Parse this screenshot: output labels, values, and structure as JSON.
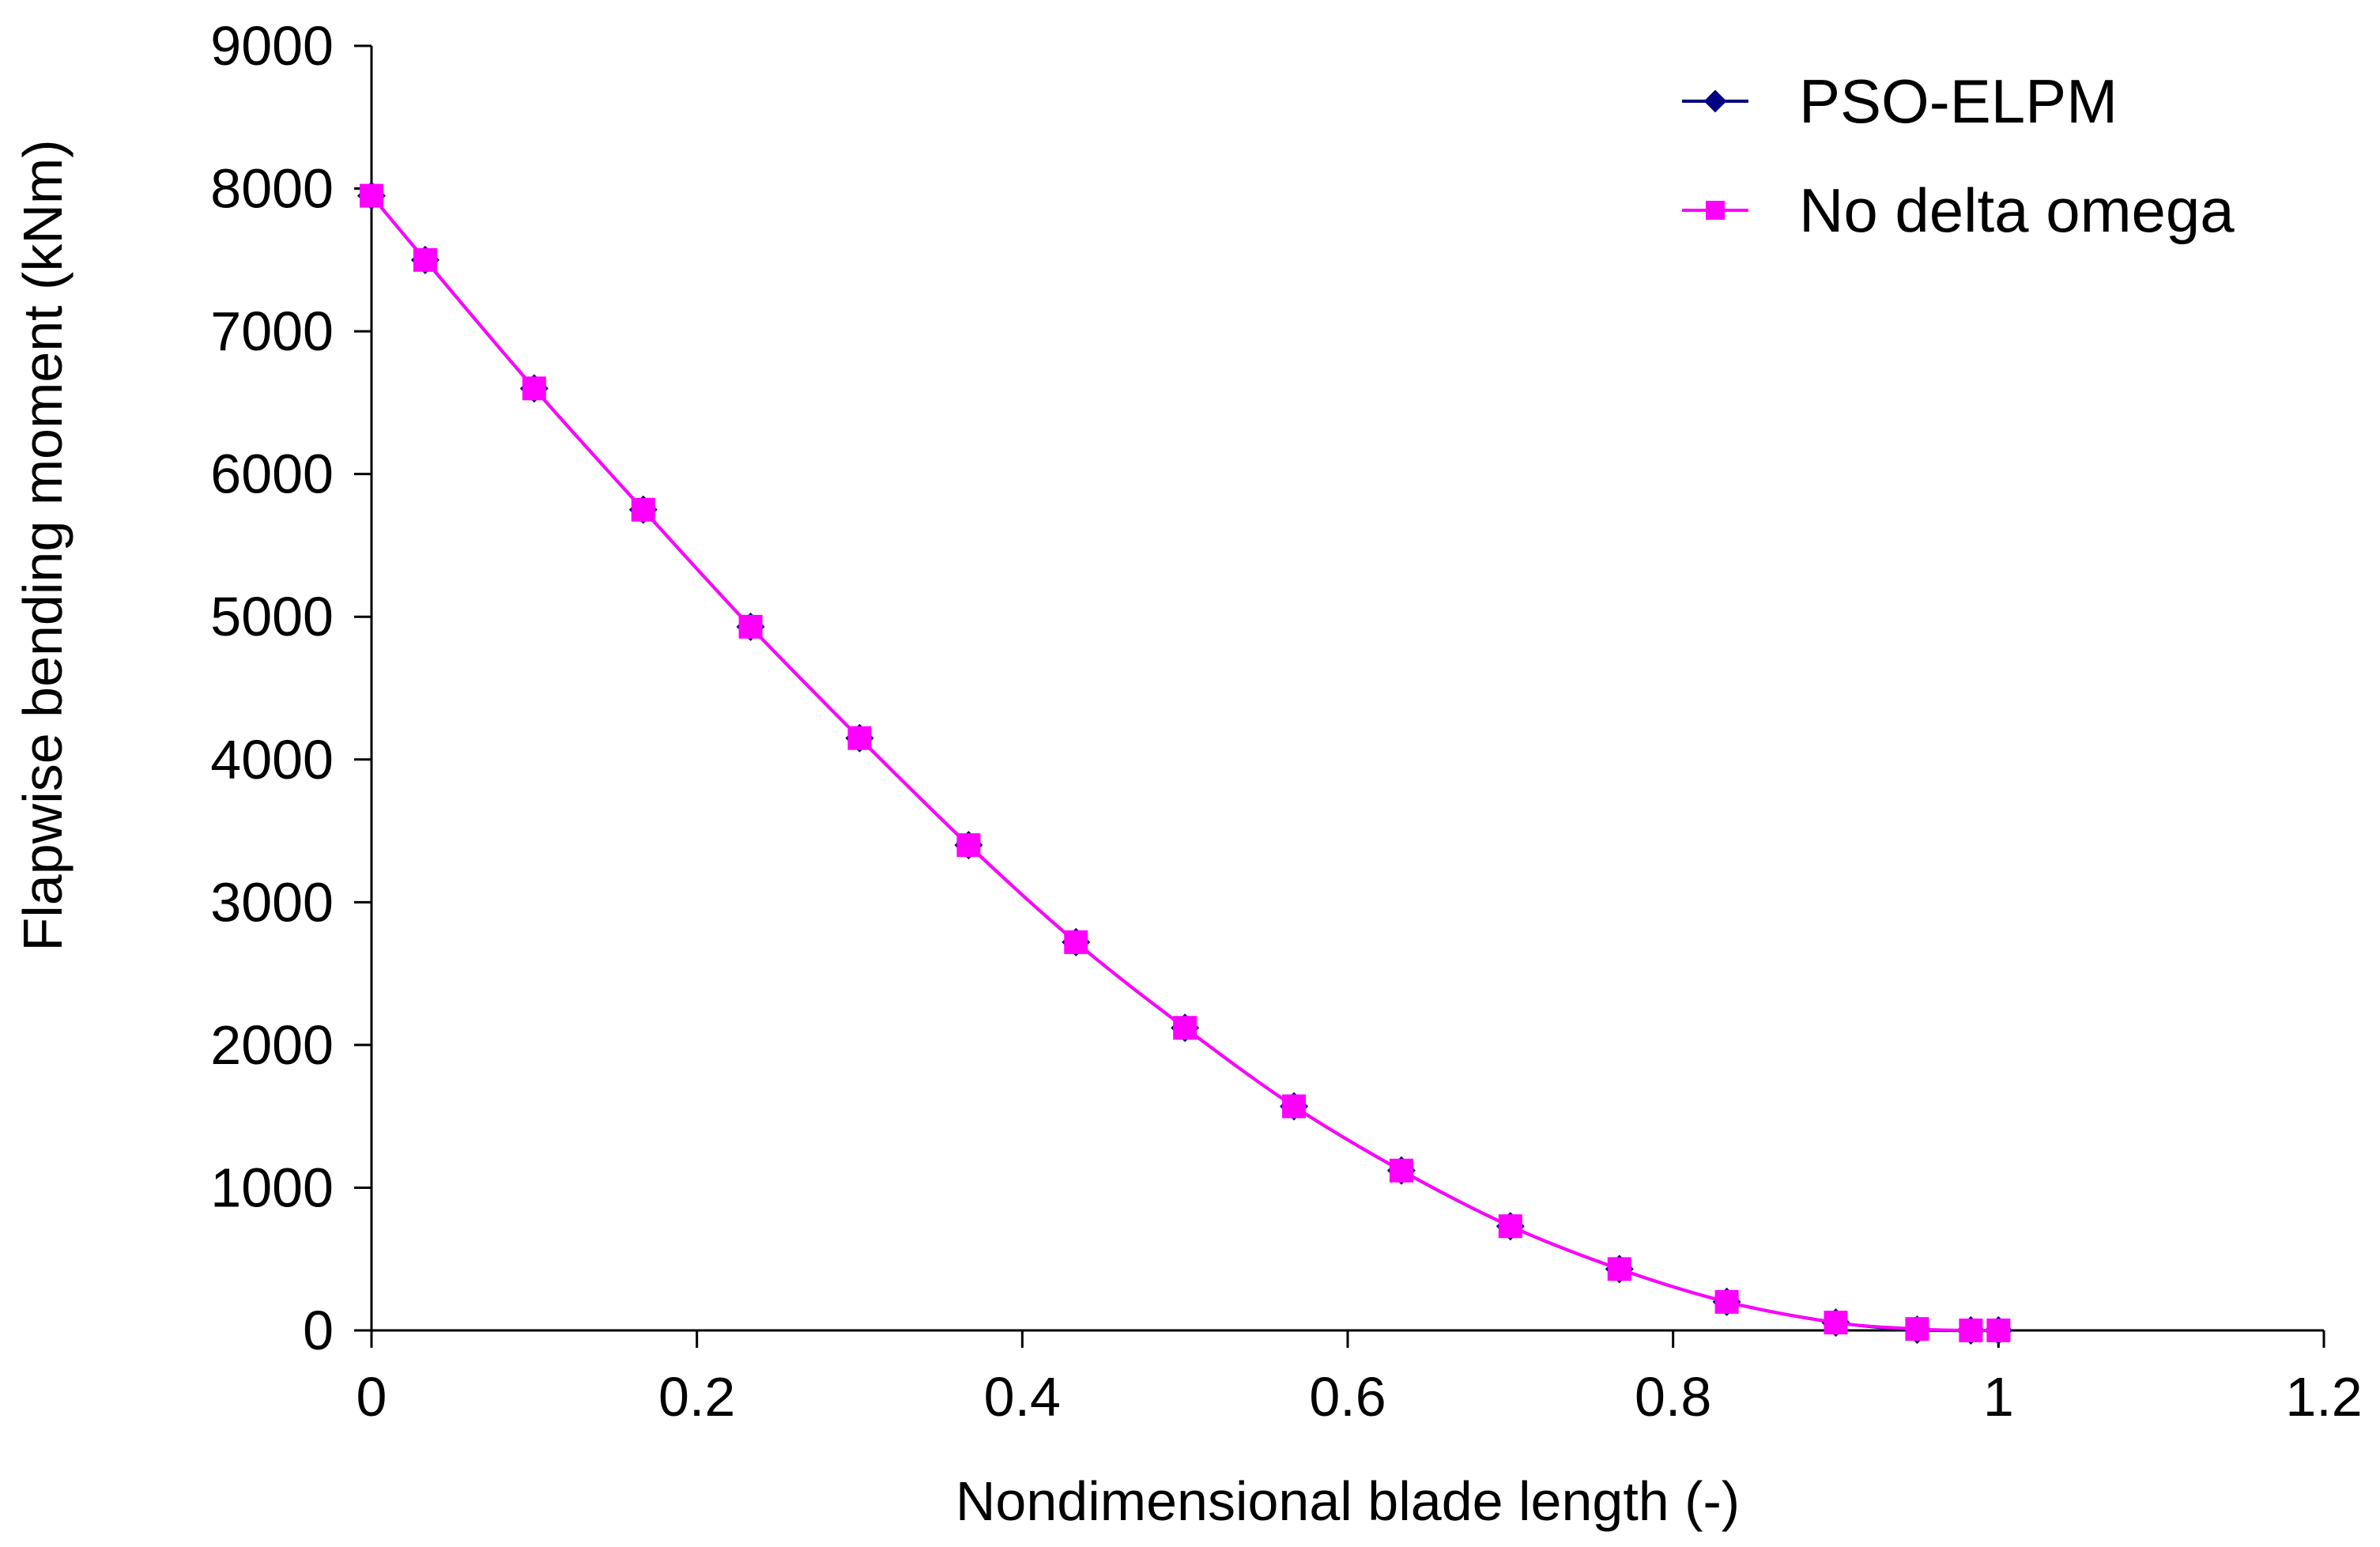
{
  "chart_data": {
    "type": "line",
    "title": "",
    "xlabel": "Nondimensional blade length (-)",
    "ylabel": "Flapwise bending moment (kNm)",
    "xlim": [
      0,
      1.2
    ],
    "ylim": [
      0,
      9000
    ],
    "xticks": [
      "0",
      "0.2",
      "0.4",
      "0.6",
      "0.8",
      "1",
      "1.2"
    ],
    "yticks": [
      "0",
      "1000",
      "2000",
      "3000",
      "4000",
      "5000",
      "6000",
      "7000",
      "8000",
      "9000"
    ],
    "grid": false,
    "legend_position": "top-right",
    "x": [
      0,
      0.033,
      0.1,
      0.167,
      0.233,
      0.3,
      0.367,
      0.433,
      0.5,
      0.567,
      0.633,
      0.7,
      0.767,
      0.833,
      0.9,
      0.95,
      0.983,
      1.0
    ],
    "series": [
      {
        "name": "PSO-ELPM",
        "color": "#000080",
        "marker": "diamond",
        "values": [
          7950,
          7500,
          6600,
          5750,
          4930,
          4150,
          3400,
          2720,
          2120,
          1570,
          1120,
          730,
          430,
          200,
          55,
          5,
          0,
          0
        ]
      },
      {
        "name": "No delta omega",
        "color": "#ff00ff",
        "marker": "square",
        "values": [
          7950,
          7500,
          6600,
          5750,
          4930,
          4150,
          3400,
          2720,
          2120,
          1570,
          1120,
          730,
          430,
          200,
          55,
          10,
          0,
          0
        ]
      }
    ]
  }
}
